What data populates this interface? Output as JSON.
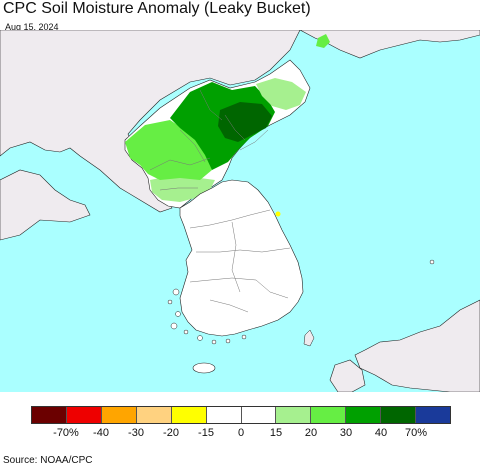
{
  "title": "CPC Soil Moisture Anomaly (Leaky Bucket)",
  "date": "Aug 15, 2024",
  "source": "Source: NOAA/CPC",
  "colors": {
    "ocean": "#aaffff",
    "foreign_land": "#efebef",
    "land_neutral": "#ffffff",
    "lake": "#aaffff"
  },
  "legend": {
    "swatches": [
      "#6b0000",
      "#ee0000",
      "#ffa500",
      "#ffd280",
      "#ffff00",
      "#ffffff",
      "#ffffff",
      "#a6f08f",
      "#66ee44",
      "#00a000",
      "#006600",
      "#1a3a9a"
    ],
    "ticks": [
      "-70%",
      "-40",
      "-30",
      "-20",
      "-15",
      "0",
      "15",
      "20",
      "30",
      "40",
      "70%"
    ]
  }
}
